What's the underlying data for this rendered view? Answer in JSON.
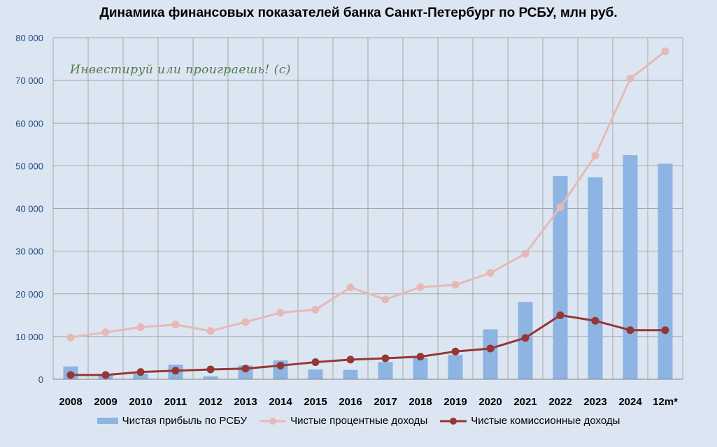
{
  "chart_data": {
    "type": "bar",
    "title": "Динамика финансовых показателей банка Санкт-Петербург по РСБУ, млн руб.",
    "categories": [
      "2008",
      "2009",
      "2010",
      "2011",
      "2012",
      "2013",
      "2014",
      "2015",
      "2016",
      "2017",
      "2018",
      "2019",
      "2020",
      "2021",
      "2022",
      "2023",
      "2024",
      "12m*"
    ],
    "ylim": [
      0,
      80000
    ],
    "yticks": [
      0,
      10000,
      20000,
      30000,
      40000,
      50000,
      60000,
      70000,
      80000
    ],
    "ytick_labels": [
      "0",
      "10 000",
      "20 000",
      "30 000",
      "40 000",
      "50 000",
      "60 000",
      "70 000",
      "80 000"
    ],
    "grid": true,
    "legend_position": "bottom",
    "series": [
      {
        "name": "Чистая прибыль по РСБУ",
        "kind": "bar",
        "color": "#8db4e2",
        "values": [
          3000,
          1100,
          1300,
          3400,
          700,
          3200,
          4400,
          2300,
          2200,
          4000,
          5000,
          5700,
          11700,
          18100,
          47600,
          47300,
          52500,
          50500
        ]
      },
      {
        "name": "Чистые процентные доходы",
        "kind": "line",
        "color": "#e6b9b8",
        "values": [
          9800,
          11000,
          12200,
          12800,
          11300,
          13400,
          15600,
          16300,
          21500,
          18700,
          21600,
          22100,
          24900,
          29400,
          40300,
          52400,
          70400,
          76800
        ]
      },
      {
        "name": "Чистые комиссионные доходы",
        "kind": "line",
        "color": "#953735",
        "values": [
          1000,
          1000,
          1700,
          2000,
          2300,
          2500,
          3200,
          4000,
          4600,
          4900,
          5300,
          6500,
          7200,
          9700,
          15000,
          13700,
          11500,
          11500
        ]
      }
    ]
  },
  "watermark_text": "Инвестируй или проиграешь! (с)"
}
